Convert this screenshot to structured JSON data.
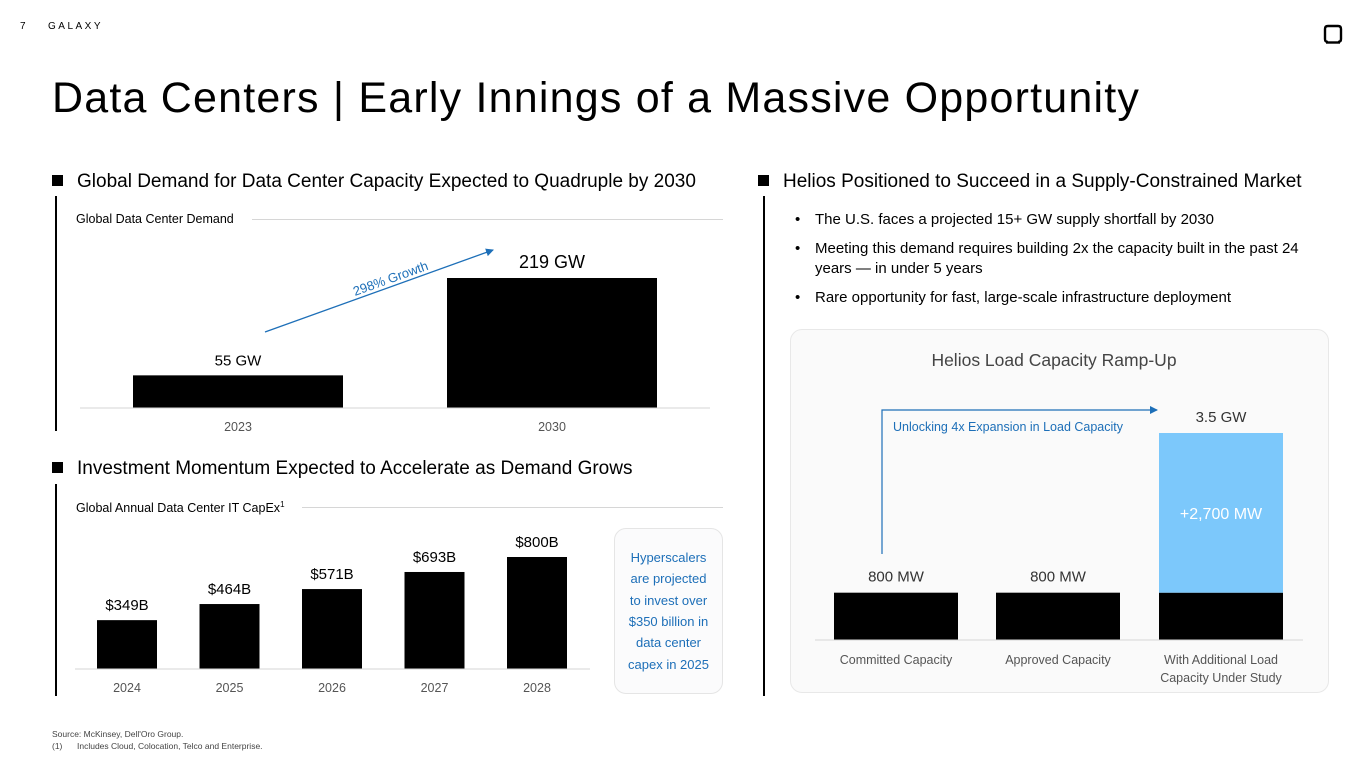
{
  "header": {
    "page_number": "7",
    "brand": "GALAXY",
    "logo_icon": "galaxy-logo-icon"
  },
  "title": "Data Centers | Early Innings of a Massive Opportunity",
  "left_top": {
    "heading": "Global Demand for Data Center Capacity Expected to Quadruple by 2030",
    "subtitle": "Global Data Center Demand",
    "growth_label": "298% Growth"
  },
  "left_bottom": {
    "heading": "Investment Momentum Expected to Accelerate as Demand Grows",
    "subtitle": "Global Annual Data Center IT CapEx",
    "subtitle_sup": "1",
    "callout": "Hyperscalers are projected to invest over $350 billion in data center capex in 2025"
  },
  "right": {
    "heading": "Helios Positioned to Succeed in a Supply-Constrained Market",
    "bullets": [
      "The U.S. faces a projected 15+ GW supply shortfall by 2030",
      "Meeting this demand requires building 2x the capacity built in the past 24 years — in under 5 years",
      "Rare opportunity for fast, large-scale infrastructure deployment"
    ]
  },
  "footnotes": {
    "source": "Source: McKinsey, Dell'Oro Group.",
    "note_num": "(1)",
    "note_text": "Includes Cloud, Colocation, Telco and Enterprise."
  },
  "chart_data": [
    {
      "type": "bar",
      "title": "Global Data Center Demand",
      "categories": [
        "2023",
        "2030"
      ],
      "values": [
        55,
        219
      ],
      "labels": [
        "55 GW",
        "219 GW"
      ],
      "unit": "GW",
      "annotation": "298% Growth",
      "color": "#000000"
    },
    {
      "type": "bar",
      "title": "Global Annual Data Center IT CapEx",
      "categories": [
        "2024",
        "2025",
        "2026",
        "2027",
        "2028"
      ],
      "values": [
        349,
        464,
        571,
        693,
        800
      ],
      "labels": [
        "$349B",
        "$464B",
        "$571B",
        "$693B",
        "$800B"
      ],
      "unit": "$B",
      "color": "#000000"
    },
    {
      "type": "bar",
      "title": "Helios Load Capacity Ramp-Up",
      "categories": [
        "Committed Capacity",
        "Approved Capacity",
        "With Additional Load Capacity Under Study"
      ],
      "series": [
        {
          "name": "",
          "values": [
            800,
            800,
            800
          ],
          "color": "#000000"
        },
        {
          "name": "",
          "values": [
            0,
            0,
            2700
          ],
          "color": "#7cc8fb"
        }
      ],
      "labels": [
        "800 MW",
        "800 MW",
        "3.5 GW"
      ],
      "segment_label": "+2,700 MW",
      "unit": "MW",
      "annotation": "Unlocking 4x Expansion in Load Capacity",
      "accent_color": "#1d6fb8"
    }
  ]
}
